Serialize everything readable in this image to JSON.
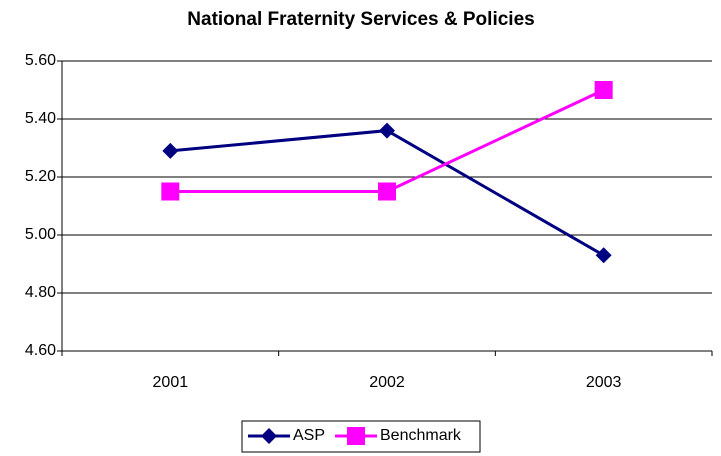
{
  "chart_data": {
    "type": "line",
    "title": "National Fraternity Services & Policies",
    "categories": [
      "2001",
      "2002",
      "2003"
    ],
    "series": [
      {
        "name": "ASP",
        "color": "#000080",
        "marker": "diamond",
        "values": [
          5.29,
          5.36,
          4.93
        ]
      },
      {
        "name": "Benchmark",
        "color": "#ff00ff",
        "marker": "square",
        "values": [
          5.15,
          5.15,
          5.5
        ]
      }
    ],
    "ylim": [
      4.6,
      5.6
    ],
    "yticks": [
      {
        "value": 4.6,
        "label": "4.60"
      },
      {
        "value": 4.8,
        "label": "4.80"
      },
      {
        "value": 5.0,
        "label": "5.00"
      },
      {
        "value": 5.2,
        "label": "5.20"
      },
      {
        "value": 5.4,
        "label": "5.40"
      },
      {
        "value": 5.6,
        "label": "5.60"
      }
    ],
    "grid": true,
    "legend": "bottom"
  }
}
